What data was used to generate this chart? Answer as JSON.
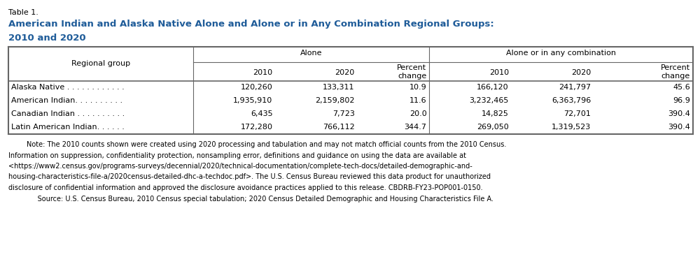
{
  "table_label": "Table 1.",
  "title_line1": "American Indian and Alaska Native Alone and Alone or in Any Combination Regional Groups:",
  "title_line2": "2010 and 2020",
  "col_group1": "Alone",
  "col_group2": "Alone or in any combination",
  "row_label_header": "Regional group",
  "col_sub_headers": [
    "2010",
    "2020",
    "Percent\nchange",
    "2010",
    "2020",
    "Percent\nchange"
  ],
  "rows": [
    [
      "Alaska Native . . . . . . . . . . . .",
      "120,260",
      "133,311",
      "10.9",
      "166,120",
      "241,797",
      "45.6"
    ],
    [
      "American Indian. . . . . . . . . .",
      "1,935,910",
      "2,159,802",
      "11.6",
      "3,232,465",
      "6,363,796",
      "96.9"
    ],
    [
      "Canadian Indian . . . . . . . . . .",
      "6,435",
      "7,723",
      "20.0",
      "14,825",
      "72,701",
      "390.4"
    ],
    [
      "Latin American Indian. . . . . .",
      "172,280",
      "766,112",
      "344.7",
      "269,050",
      "1,319,523",
      "390.4"
    ]
  ],
  "note_lines": [
    "Note: The 2010 counts shown were created using 2020 processing and tabulation and may not match official counts from the 2010 Census.",
    "Information on suppression, confidentiality protection, nonsampling error, definitions and guidance on using the data are available at",
    "<https://www2.census.gov/programs-surveys/decennial/2020/technical-documentation/complete-tech-docs/detailed-demographic-and-",
    "housing-characteristics-file-a/2020census-detailed-dhc-a-techdoc.pdf>. The U.S. Census Bureau reviewed this data product for unauthorized",
    "disclosure of confidential information and approved the disclosure avoidance practices applied to this release. CBDRB-FY23-POP001-0150.",
    "     Source: U.S. Census Bureau, 2010 Census special tabulation; 2020 Census Detailed Demographic and Housing Characteristics File A."
  ],
  "title_color": "#1F5C99",
  "border_color": "#666666",
  "text_color": "#000000",
  "bg_color": "#FFFFFF",
  "fig_width": 10.0,
  "fig_height": 3.78,
  "dpi": 100
}
